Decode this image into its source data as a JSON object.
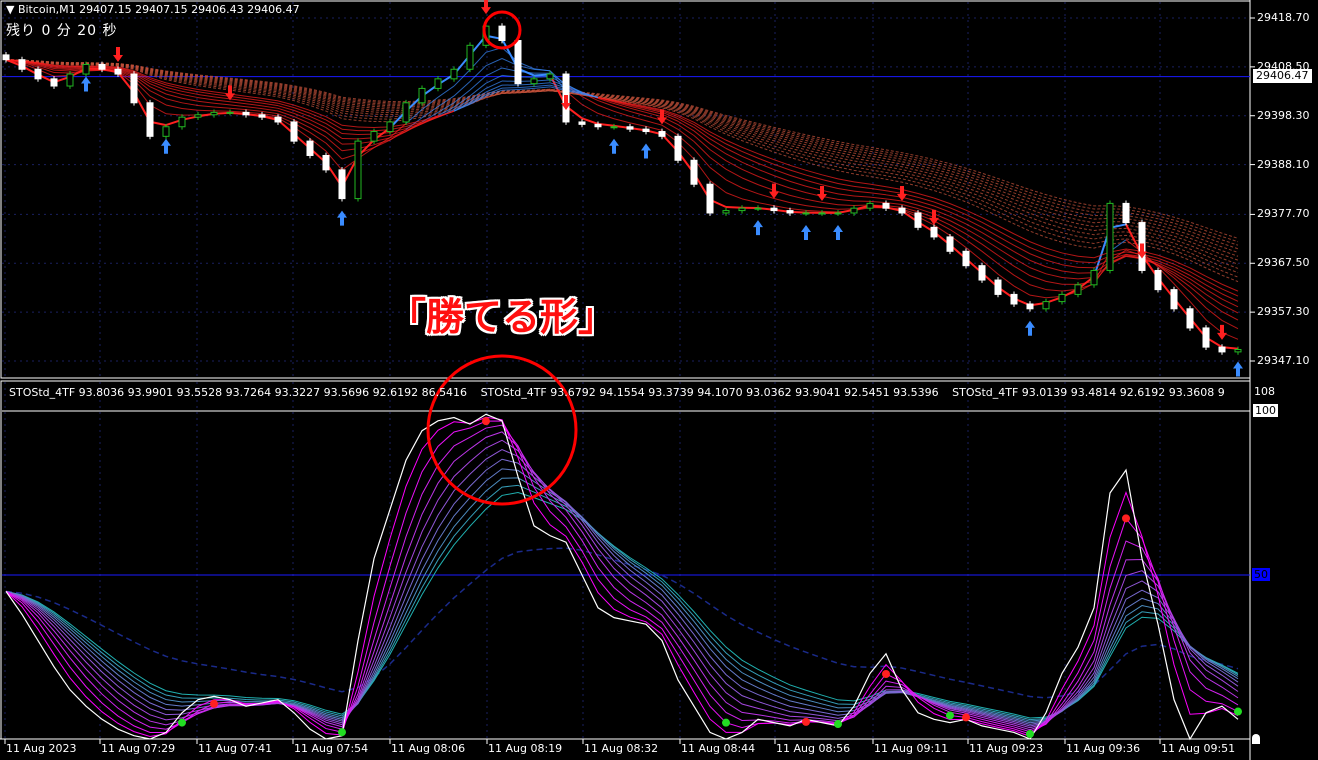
{
  "header": {
    "symbol_arrow_icon": "triangle-down-icon",
    "title": "▼ Bitcoin,M1  29407.15 29407.15 29406.43 29406.47",
    "timer": "残り 0 分 20 秒"
  },
  "annotation": {
    "callout_text": "「勝てる形」",
    "circle_color": "#ff0000"
  },
  "indicator": {
    "legends": [
      "STOStd_4TF 93.8036 93.9901 93.5528 93.7264 93.3227 93.5696 92.6192 86.5416",
      "STOStd_4TF 93.6792 94.1554 93.3739 94.1070 93.0362 93.9041 92.5451 93.5396",
      "STOStd_4TF 93.0139 93.4814 92.6192 93.3608 9"
    ],
    "scale_labels": {
      "top": "108",
      "level_100": "100",
      "level_50": "50"
    }
  },
  "chart_data": [
    {
      "type": "candlestick",
      "title": "Bitcoin,M1",
      "timeframe": "M1",
      "current_price": "29406.47",
      "y_ticks": [
        "29418.70",
        "29408.50",
        "29398.30",
        "29388.10",
        "29377.70",
        "29367.50",
        "29357.30",
        "29347.10"
      ],
      "ylim": [
        29347.1,
        29418.7
      ],
      "x_ticks": [
        "11 Aug 2023",
        "11 Aug 07:29",
        "11 Aug 07:41",
        "11 Aug 07:54",
        "11 Aug 08:06",
        "11 Aug 08:19",
        "11 Aug 08:32",
        "11 Aug 08:44",
        "11 Aug 08:56",
        "11 Aug 09:11",
        "11 Aug 09:23",
        "11 Aug 09:36",
        "11 Aug 09:51"
      ],
      "closes": [
        29410,
        29408,
        29406,
        29404.5,
        29407,
        29409,
        29408,
        29407,
        29401,
        29394,
        29396,
        29398,
        29398.5,
        29399,
        29399,
        29398.5,
        29398,
        29397,
        29393,
        29390,
        29387,
        29381,
        29393,
        29395,
        29397,
        29401,
        29404,
        29406,
        29408,
        29413,
        29417,
        29414,
        29405,
        29406,
        29407,
        29397,
        29396.5,
        29396,
        29396,
        29395.5,
        29395,
        29394,
        29389,
        29384,
        29378,
        29378.5,
        29379,
        29379,
        29378.5,
        29378,
        29378,
        29378,
        29378,
        29379,
        29380,
        29379,
        29378,
        29375,
        29373,
        29370,
        29367,
        29364,
        29361,
        29359,
        29358,
        29359.5,
        29361,
        29363,
        29366,
        29380,
        29376,
        29366,
        29362,
        29358,
        29354,
        29350,
        29349,
        29349.5
      ],
      "buy_arrows": [
        5,
        10,
        21,
        38,
        40,
        47,
        50,
        52,
        64,
        77
      ],
      "sell_arrows": [
        7,
        14,
        30,
        35,
        41,
        48,
        51,
        56,
        58,
        71,
        76
      ],
      "colors": {
        "bull": "#22b822",
        "bear": "#ffffff",
        "ma_down": "#ff2020",
        "ma_up": "#3a8cff",
        "slow_ma": "#c0503a",
        "current_line": "#1a1aff",
        "grid": "#1a2060"
      },
      "grid": true
    },
    {
      "type": "line",
      "title": "STOStd_4TF",
      "ylim": [
        0,
        108
      ],
      "levels": [
        100,
        50
      ],
      "stochastic": [
        45,
        38,
        30,
        22,
        15,
        10,
        6,
        3,
        1,
        0,
        2,
        8,
        12,
        13,
        12,
        10,
        11,
        12,
        8,
        3,
        0,
        1,
        30,
        55,
        70,
        85,
        94,
        97,
        98,
        96,
        99,
        97,
        80,
        65,
        62,
        60,
        50,
        40,
        37,
        36,
        35,
        30,
        18,
        10,
        2,
        0,
        2,
        6,
        5,
        4,
        6,
        5,
        4,
        10,
        20,
        26,
        15,
        8,
        6,
        5,
        6,
        4,
        3,
        2,
        0,
        8,
        20,
        28,
        40,
        75,
        82,
        55,
        35,
        12,
        0,
        8,
        10,
        6
      ],
      "peak_dots": [
        13,
        30,
        50,
        55,
        60,
        70
      ],
      "trough_dots": [
        11,
        21,
        45,
        52,
        59,
        64,
        77
      ],
      "colors": {
        "main": "#ffffff",
        "fast": "#ff00ff",
        "slow": "#20b0b0",
        "signal": "#1a2a8a",
        "peak": "#ff2020",
        "trough": "#22dd22"
      }
    }
  ]
}
